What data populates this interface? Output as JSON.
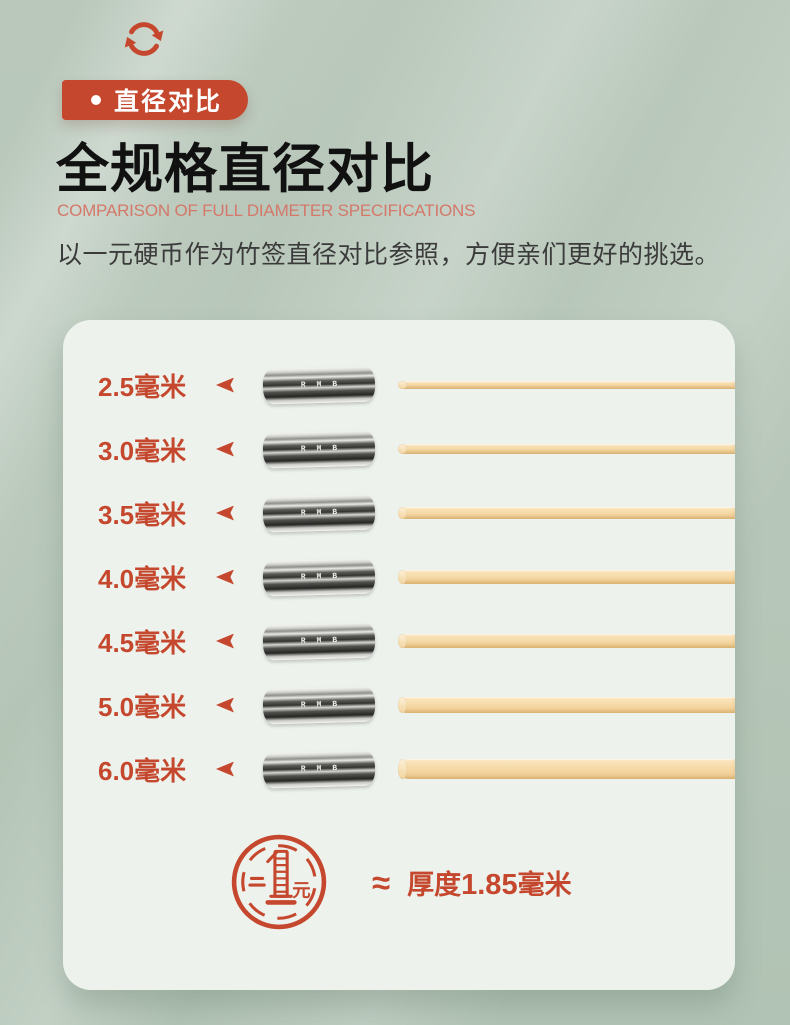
{
  "header": {
    "badge_label": "直径对比",
    "title": "全规格直径对比",
    "subtitle": "COMPARISON OF FULL DIAMETER SPECIFICATIONS",
    "description": "以一元硬币作为竹签直径对比参照，方便亲们更好的挑选。"
  },
  "comparison": {
    "rows": [
      {
        "label": "2.5毫米",
        "diameter_mm": 2.5
      },
      {
        "label": "3.0毫米",
        "diameter_mm": 3.0
      },
      {
        "label": "3.5毫米",
        "diameter_mm": 3.5
      },
      {
        "label": "4.0毫米",
        "diameter_mm": 4.0
      },
      {
        "label": "4.5毫米",
        "diameter_mm": 4.5
      },
      {
        "label": "5.0毫米",
        "diameter_mm": 5.0
      },
      {
        "label": "6.0毫米",
        "diameter_mm": 6.0
      }
    ],
    "coin_edge_marking": "RMB",
    "footer": {
      "coin_label": "元",
      "approx": "≈",
      "thickness_prefix": "厚度",
      "thickness_value": "1.85",
      "thickness_suffix": "毫米"
    }
  },
  "colors": {
    "accent": "#c5482e",
    "subtitle": "#d4786a",
    "title": "#111111",
    "body_text": "#3b3b3b",
    "background": "#b7c7b9",
    "card": "#edf2ed",
    "skewer": "#f5d8a5"
  }
}
